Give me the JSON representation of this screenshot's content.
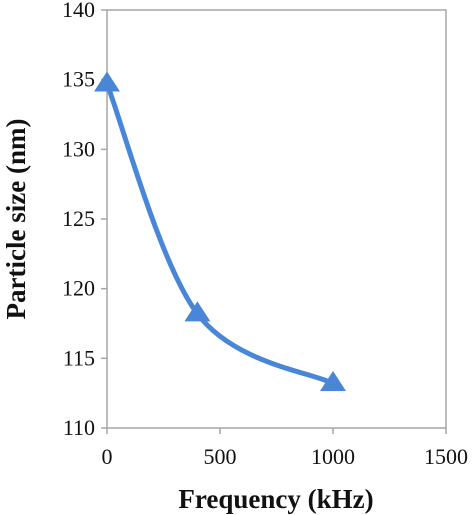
{
  "chart_data": {
    "type": "line",
    "title": "",
    "xlabel": "Frequency (kHz)",
    "ylabel": "Particle size (nm)",
    "xlim": [
      0,
      1500
    ],
    "ylim": [
      110,
      140
    ],
    "x_ticks": [
      0,
      500,
      1000,
      1500
    ],
    "y_ticks": [
      110,
      115,
      120,
      125,
      130,
      135,
      140
    ],
    "grid": false,
    "legend": "none",
    "marker": "triangle",
    "smooth": true,
    "series": [
      {
        "color": "#4a86d8",
        "x": [
          0,
          400,
          1000
        ],
        "y": [
          134.7,
          118.2,
          113.2
        ]
      }
    ]
  }
}
